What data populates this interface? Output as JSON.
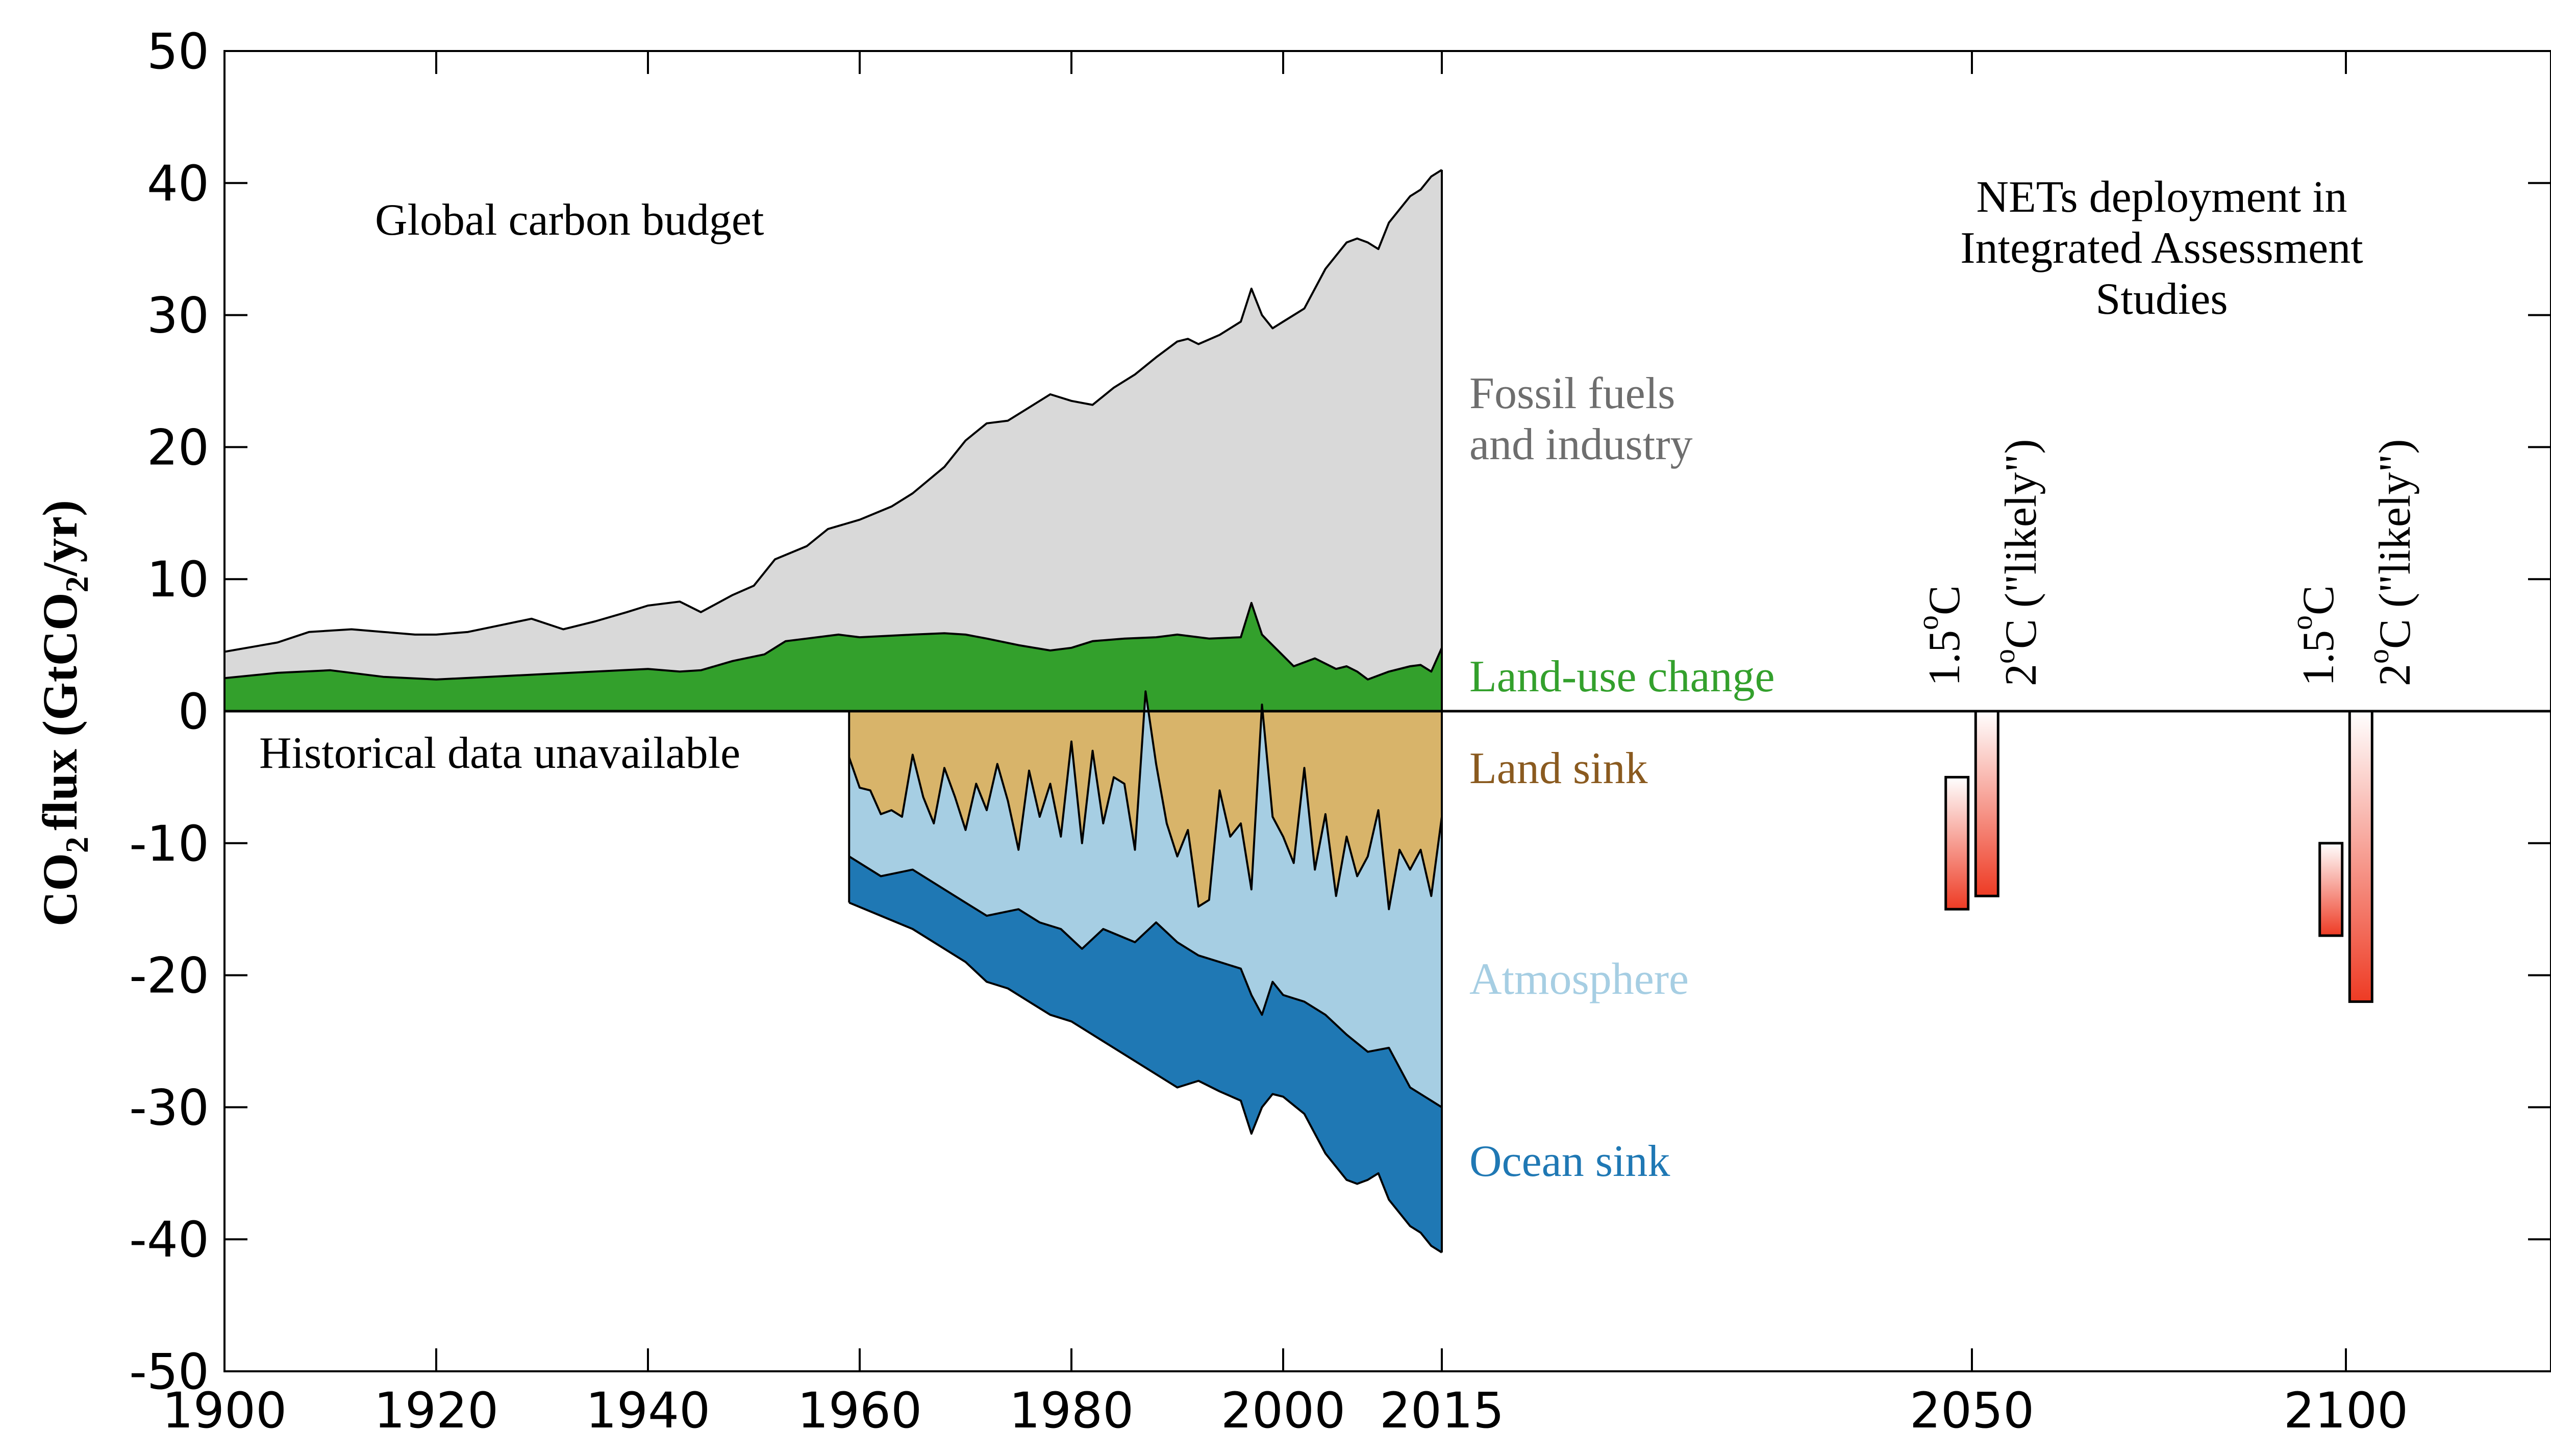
{
  "chart_data": {
    "type": "area",
    "ylabel": {
      "prefix": "CO",
      "sub1": "2",
      "mid": "flux (GtCO",
      "sub2": "2",
      "suffix": "/yr)"
    },
    "xlim": [
      1900,
      2125
    ],
    "ylim": [
      -50,
      50
    ],
    "x_ticks": [
      1900,
      1920,
      1940,
      1960,
      1980,
      2000,
      2015,
      2050,
      2100
    ],
    "y_ticks": [
      50,
      40,
      30,
      20,
      10,
      0,
      -10,
      -20,
      -30,
      -40,
      -50
    ],
    "historical": {
      "fossil_top": [
        [
          1900,
          4.5
        ],
        [
          1905,
          5.2
        ],
        [
          1908,
          6.0
        ],
        [
          1912,
          6.2
        ],
        [
          1915,
          6.0
        ],
        [
          1918,
          5.8
        ],
        [
          1920,
          5.8
        ],
        [
          1923,
          6.0
        ],
        [
          1926,
          6.5
        ],
        [
          1929,
          7.0
        ],
        [
          1932,
          6.2
        ],
        [
          1935,
          6.8
        ],
        [
          1938,
          7.5
        ],
        [
          1940,
          8.0
        ],
        [
          1943,
          8.3
        ],
        [
          1945,
          7.5
        ],
        [
          1948,
          8.8
        ],
        [
          1950,
          9.5
        ],
        [
          1952,
          11.5
        ],
        [
          1955,
          12.5
        ],
        [
          1957,
          13.8
        ],
        [
          1960,
          14.5
        ],
        [
          1963,
          15.5
        ],
        [
          1965,
          16.5
        ],
        [
          1968,
          18.5
        ],
        [
          1970,
          20.5
        ],
        [
          1972,
          21.8
        ],
        [
          1974,
          22.0
        ],
        [
          1976,
          23.0
        ],
        [
          1978,
          24.0
        ],
        [
          1980,
          23.5
        ],
        [
          1982,
          23.2
        ],
        [
          1984,
          24.5
        ],
        [
          1986,
          25.5
        ],
        [
          1988,
          26.8
        ],
        [
          1990,
          28.0
        ],
        [
          1991,
          28.2
        ],
        [
          1992,
          27.8
        ],
        [
          1994,
          28.5
        ],
        [
          1996,
          29.5
        ],
        [
          1997,
          32.0
        ],
        [
          1998,
          30.0
        ],
        [
          1999,
          29.0
        ],
        [
          2000,
          29.5
        ],
        [
          2002,
          30.5
        ],
        [
          2004,
          33.5
        ],
        [
          2006,
          35.5
        ],
        [
          2007,
          35.8
        ],
        [
          2008,
          35.5
        ],
        [
          2009,
          35.0
        ],
        [
          2010,
          37.0
        ],
        [
          2012,
          39.0
        ],
        [
          2013,
          39.5
        ],
        [
          2014,
          40.5
        ],
        [
          2015,
          41.0
        ]
      ],
      "landuse_top": [
        [
          1900,
          2.5
        ],
        [
          1905,
          2.9
        ],
        [
          1910,
          3.1
        ],
        [
          1915,
          2.6
        ],
        [
          1920,
          2.4
        ],
        [
          1925,
          2.6
        ],
        [
          1930,
          2.8
        ],
        [
          1935,
          3.0
        ],
        [
          1940,
          3.2
        ],
        [
          1943,
          3.0
        ],
        [
          1945,
          3.1
        ],
        [
          1948,
          3.8
        ],
        [
          1951,
          4.3
        ],
        [
          1953,
          5.3
        ],
        [
          1955,
          5.5
        ],
        [
          1958,
          5.8
        ],
        [
          1960,
          5.6
        ],
        [
          1965,
          5.8
        ],
        [
          1968,
          5.9
        ],
        [
          1970,
          5.8
        ],
        [
          1972,
          5.5
        ],
        [
          1975,
          5.0
        ],
        [
          1978,
          4.6
        ],
        [
          1980,
          4.8
        ],
        [
          1982,
          5.3
        ],
        [
          1985,
          5.5
        ],
        [
          1988,
          5.6
        ],
        [
          1990,
          5.8
        ],
        [
          1993,
          5.5
        ],
        [
          1996,
          5.6
        ],
        [
          1997,
          8.2
        ],
        [
          1998,
          5.8
        ],
        [
          2000,
          4.2
        ],
        [
          2001,
          3.4
        ],
        [
          2003,
          4.0
        ],
        [
          2005,
          3.2
        ],
        [
          2006,
          3.4
        ],
        [
          2007,
          3.0
        ],
        [
          2008,
          2.4
        ],
        [
          2010,
          3.0
        ],
        [
          2012,
          3.4
        ],
        [
          2013,
          3.5
        ],
        [
          2014,
          3.0
        ],
        [
          2015,
          4.8
        ]
      ],
      "land_sink": [
        [
          1959,
          -3.5
        ],
        [
          1960,
          -5.8
        ],
        [
          1961,
          -6.0
        ],
        [
          1962,
          -7.8
        ],
        [
          1963,
          -7.5
        ],
        [
          1964,
          -8.0
        ],
        [
          1965,
          -3.3
        ],
        [
          1966,
          -6.5
        ],
        [
          1967,
          -8.5
        ],
        [
          1968,
          -4.3
        ],
        [
          1969,
          -6.5
        ],
        [
          1970,
          -9.0
        ],
        [
          1971,
          -5.5
        ],
        [
          1972,
          -7.5
        ],
        [
          1973,
          -4.0
        ],
        [
          1974,
          -6.8
        ],
        [
          1975,
          -10.5
        ],
        [
          1976,
          -4.5
        ],
        [
          1977,
          -8.0
        ],
        [
          1978,
          -5.5
        ],
        [
          1979,
          -9.5
        ],
        [
          1980,
          -2.3
        ],
        [
          1981,
          -10.0
        ],
        [
          1982,
          -3.0
        ],
        [
          1983,
          -8.5
        ],
        [
          1984,
          -5.0
        ],
        [
          1985,
          -5.5
        ],
        [
          1986,
          -10.5
        ],
        [
          1987,
          1.5
        ],
        [
          1988,
          -4.0
        ],
        [
          1989,
          -8.5
        ],
        [
          1990,
          -11.0
        ],
        [
          1991,
          -9.0
        ],
        [
          1992,
          -14.8
        ],
        [
          1993,
          -14.3
        ],
        [
          1994,
          -6.0
        ],
        [
          1995,
          -9.5
        ],
        [
          1996,
          -8.5
        ],
        [
          1997,
          -13.5
        ],
        [
          1998,
          0.5
        ],
        [
          1999,
          -8.0
        ],
        [
          2000,
          -9.5
        ],
        [
          2001,
          -11.5
        ],
        [
          2002,
          -4.3
        ],
        [
          2003,
          -12.0
        ],
        [
          2004,
          -7.8
        ],
        [
          2005,
          -14.0
        ],
        [
          2006,
          -9.5
        ],
        [
          2007,
          -12.5
        ],
        [
          2008,
          -11.0
        ],
        [
          2009,
          -7.5
        ],
        [
          2010,
          -15.0
        ],
        [
          2011,
          -10.5
        ],
        [
          2012,
          -12.0
        ],
        [
          2013,
          -10.5
        ],
        [
          2014,
          -14.0
        ],
        [
          2015,
          -8.0
        ]
      ],
      "atmosphere_bottom": [
        [
          1959,
          -11.0
        ],
        [
          1962,
          -12.5
        ],
        [
          1965,
          -12.0
        ],
        [
          1968,
          -13.5
        ],
        [
          1970,
          -14.5
        ],
        [
          1972,
          -15.5
        ],
        [
          1975,
          -15.0
        ],
        [
          1977,
          -16.0
        ],
        [
          1979,
          -16.5
        ],
        [
          1981,
          -18.0
        ],
        [
          1983,
          -16.5
        ],
        [
          1986,
          -17.5
        ],
        [
          1988,
          -16.0
        ],
        [
          1990,
          -17.5
        ],
        [
          1992,
          -18.5
        ],
        [
          1994,
          -19.0
        ],
        [
          1996,
          -19.5
        ],
        [
          1997,
          -21.5
        ],
        [
          1998,
          -23.0
        ],
        [
          1999,
          -20.5
        ],
        [
          2000,
          -21.5
        ],
        [
          2002,
          -22.0
        ],
        [
          2004,
          -23.0
        ],
        [
          2006,
          -24.5
        ],
        [
          2008,
          -25.8
        ],
        [
          2010,
          -25.5
        ],
        [
          2012,
          -28.5
        ],
        [
          2014,
          -29.5
        ],
        [
          2015,
          -30.0
        ]
      ],
      "ocean_bottom": [
        [
          1959,
          -14.5
        ],
        [
          1962,
          -15.5
        ],
        [
          1965,
          -16.5
        ],
        [
          1968,
          -18.0
        ],
        [
          1970,
          -19.0
        ],
        [
          1972,
          -20.5
        ],
        [
          1974,
          -21.0
        ],
        [
          1976,
          -22.0
        ],
        [
          1978,
          -23.0
        ],
        [
          1980,
          -23.5
        ],
        [
          1982,
          -24.5
        ],
        [
          1984,
          -25.5
        ],
        [
          1986,
          -26.5
        ],
        [
          1988,
          -27.5
        ],
        [
          1990,
          -28.5
        ],
        [
          1992,
          -28.0
        ],
        [
          1994,
          -28.8
        ],
        [
          1996,
          -29.5
        ],
        [
          1997,
          -32.0
        ],
        [
          1998,
          -30.0
        ],
        [
          1999,
          -29.0
        ],
        [
          2000,
          -29.2
        ],
        [
          2002,
          -30.5
        ],
        [
          2004,
          -33.5
        ],
        [
          2006,
          -35.5
        ],
        [
          2007,
          -35.8
        ],
        [
          2008,
          -35.5
        ],
        [
          2009,
          -35.0
        ],
        [
          2010,
          -37.0
        ],
        [
          2012,
          -39.0
        ],
        [
          2013,
          -39.5
        ],
        [
          2014,
          -40.5
        ],
        [
          2015,
          -41.0
        ]
      ]
    },
    "nets_bars": [
      {
        "x_center": 2050,
        "offset": -2,
        "top": -5,
        "bottom": -15
      },
      {
        "x_center": 2050,
        "offset": 2,
        "top": 0,
        "bottom": -14
      },
      {
        "x_center": 2100,
        "offset": -2,
        "top": -10,
        "bottom": -17
      },
      {
        "x_center": 2100,
        "offset": 2,
        "top": 0,
        "bottom": -22
      }
    ],
    "colors": {
      "fossil": "#d9d9d9",
      "landuse": "#33a02c",
      "land_sink": "#d8b46a",
      "atmosphere": "#a6cee3",
      "ocean": "#1f78b4",
      "bar_top": "#ffffff",
      "bar_bottom": "#ee3b24"
    },
    "labels": {
      "global_budget": "Global carbon budget",
      "historical_unavailable": "Historical data unavailable",
      "fossil_line1": "Fossil fuels",
      "fossil_line2": "and industry",
      "landuse": "Land-use change",
      "land_sink": "Land sink",
      "atmosphere": "Atmosphere",
      "ocean_sink": "Ocean sink",
      "nets_line1": "NETs deployment in",
      "nets_line2": "Integrated Assessment",
      "nets_line3": "Studies",
      "deg15_num": "1.5",
      "deg15_unit": "C",
      "deg2_num": "2",
      "deg2_unit": "C (\"likely\")",
      "degree_sign": "o"
    }
  }
}
